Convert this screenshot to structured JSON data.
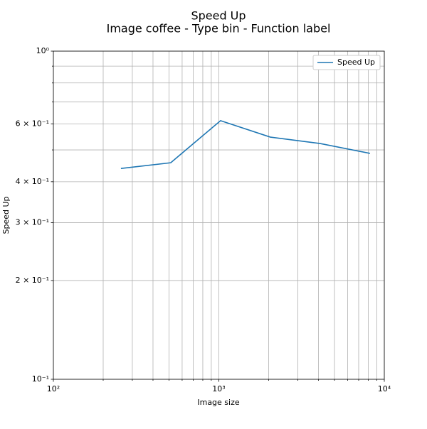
{
  "chart_data": {
    "type": "line",
    "title": "Speed Up",
    "subtitle": "Image coffee - Type bin - Function label",
    "x_label": "Image size",
    "y_label": "Speed Up",
    "x": [
      256,
      512,
      1024,
      2048,
      4096,
      8192
    ],
    "series": [
      {
        "name": "Speed Up",
        "color": "#1f77b4",
        "values": [
          0.439,
          0.457,
          0.614,
          0.547,
          0.523,
          0.488
        ]
      }
    ],
    "xscale": "log",
    "yscale": "log",
    "xlim": [
      100,
      10000
    ],
    "ylim": [
      0.1,
      1
    ],
    "xticks": [
      {
        "value": 100,
        "label": "10²"
      },
      {
        "value": 1000,
        "label": "10³"
      },
      {
        "value": 10000,
        "label": "10⁴"
      }
    ],
    "xminorticks": [
      200,
      300,
      400,
      500,
      600,
      700,
      800,
      900,
      2000,
      3000,
      4000,
      5000,
      6000,
      7000,
      8000,
      9000
    ],
    "yticks": [
      {
        "value": 0.1,
        "label": "10⁻¹"
      },
      {
        "value": 0.2,
        "label": "2 × 10⁻¹"
      },
      {
        "value": 0.3,
        "label": "3 × 10⁻¹"
      },
      {
        "value": 0.4,
        "label": "4 × 10⁻¹"
      },
      {
        "value": 0.6,
        "label": "6 × 10⁻¹"
      },
      {
        "value": 1,
        "label": "10⁰"
      }
    ],
    "yminorticks": [
      0.5,
      0.7,
      0.8,
      0.9
    ],
    "grid": true,
    "legend": "upper right"
  }
}
